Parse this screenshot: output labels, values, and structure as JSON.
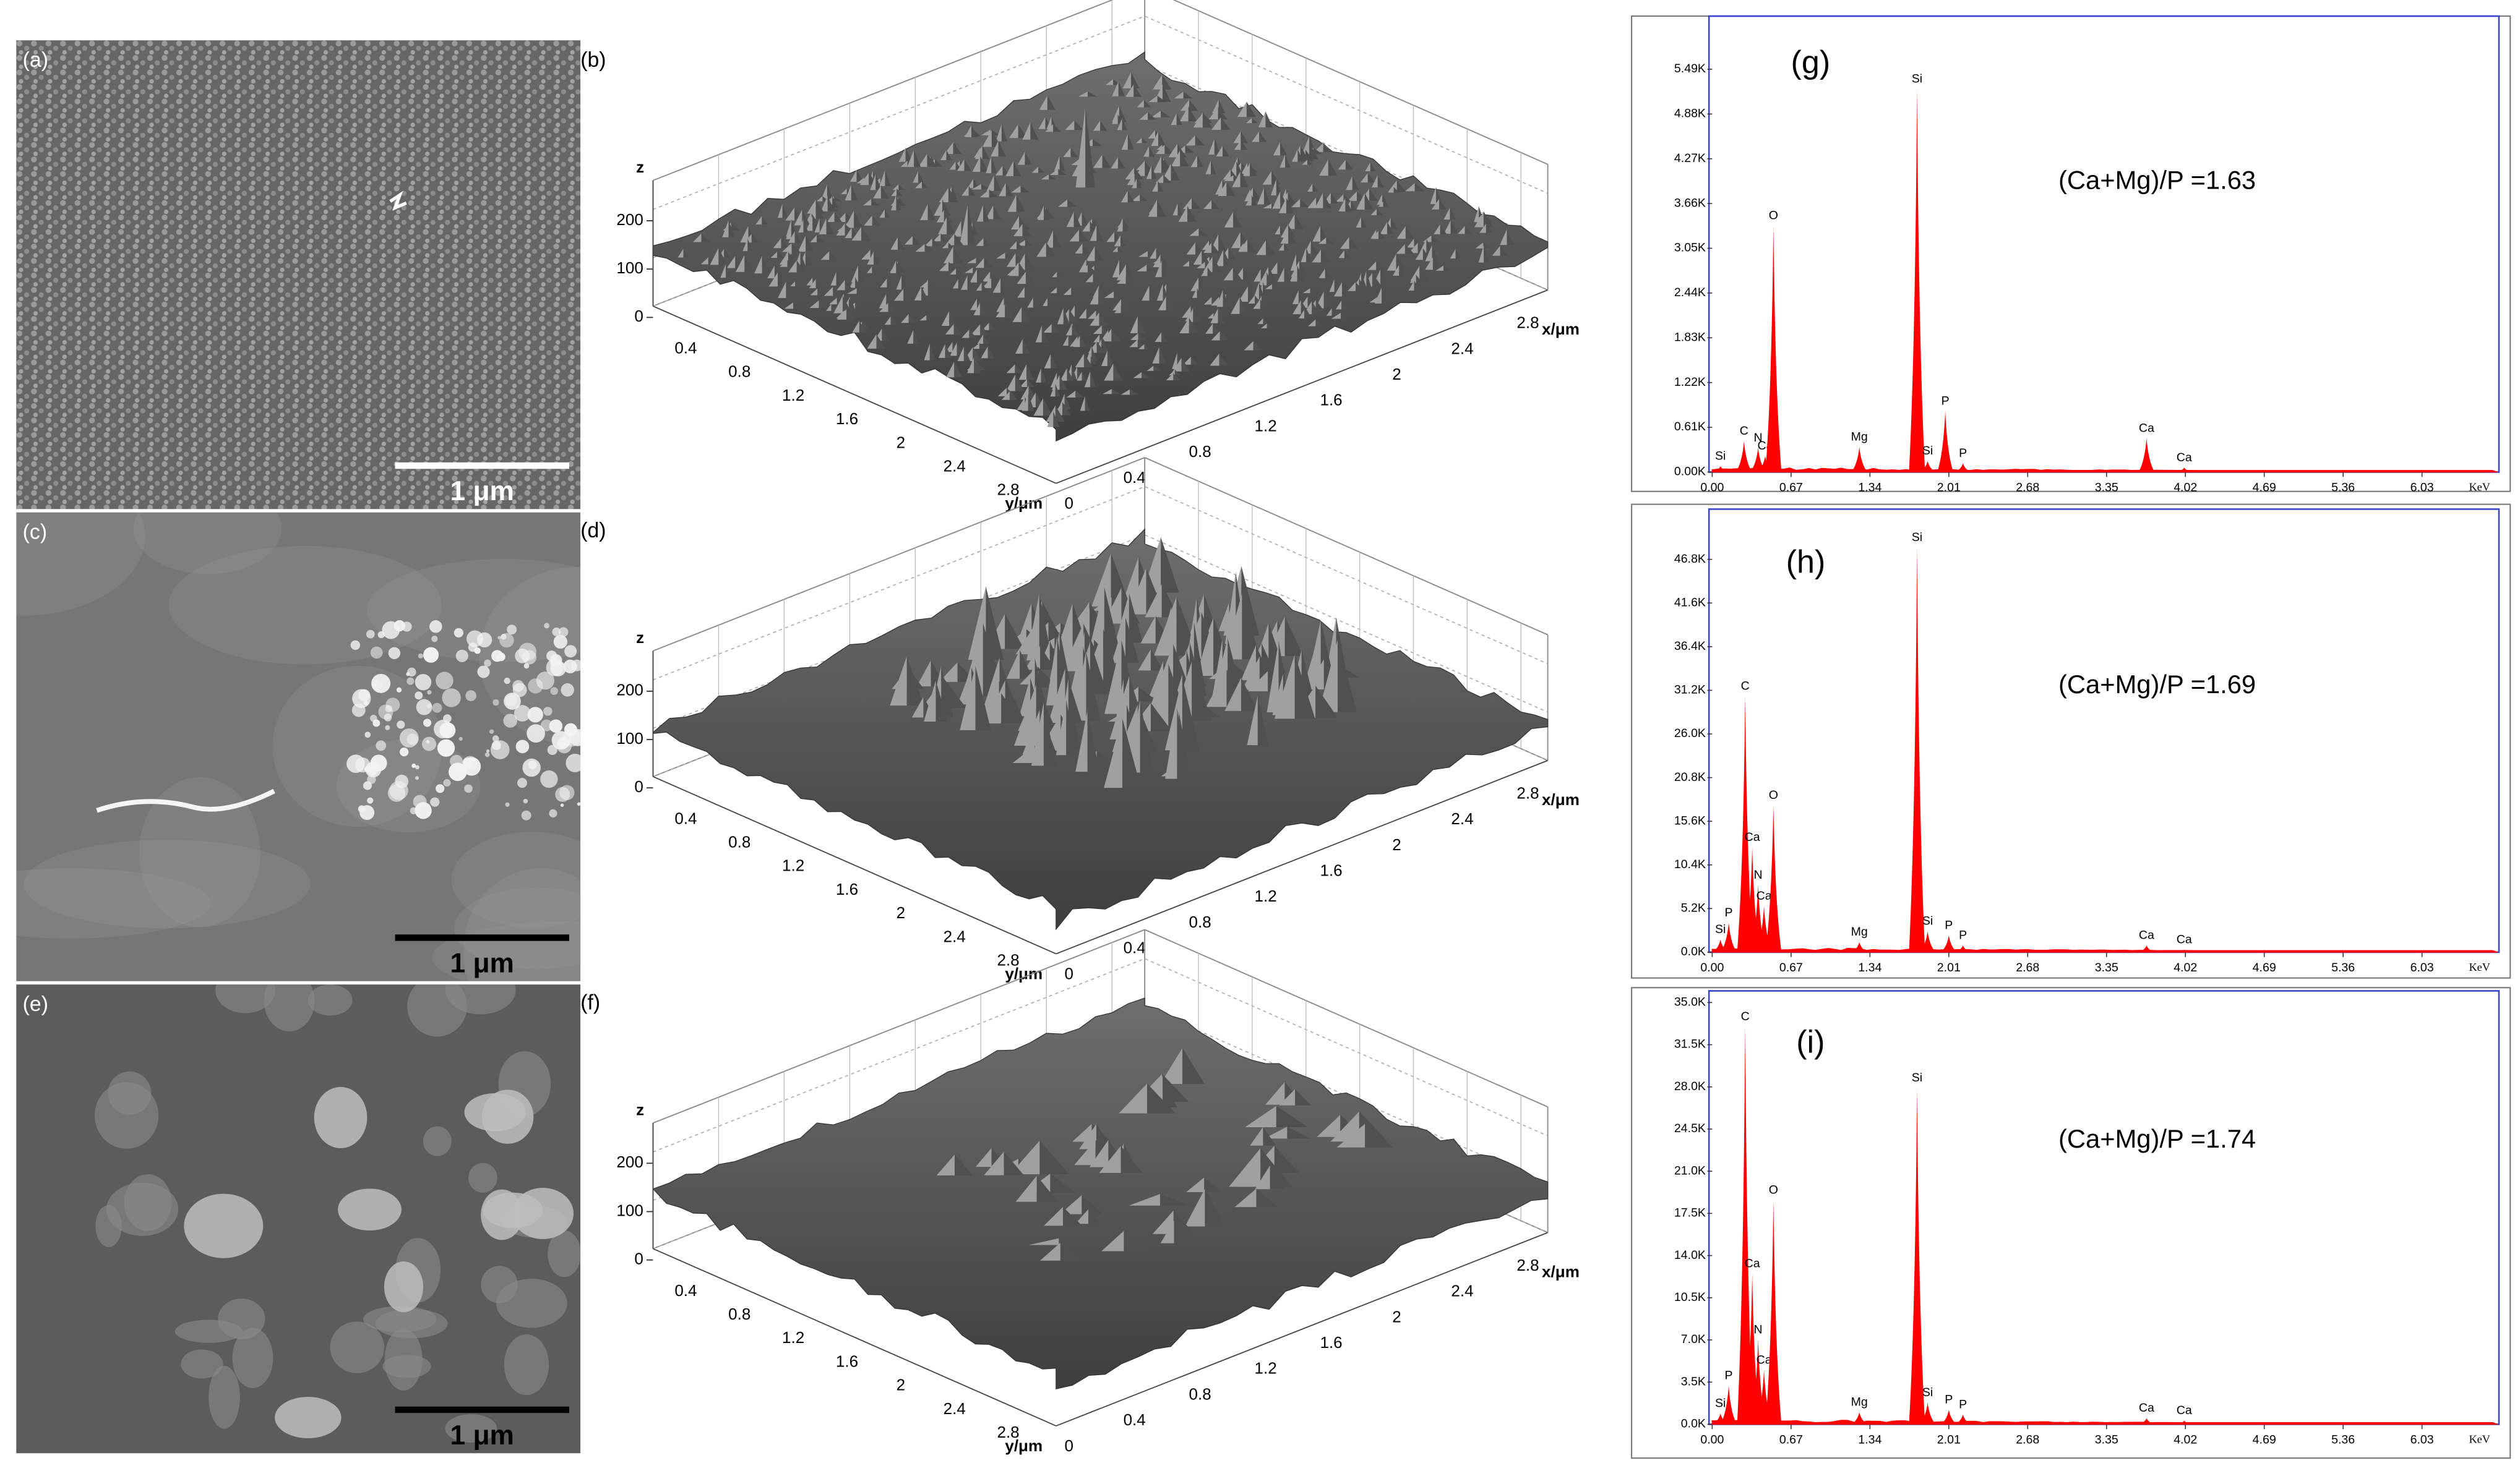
{
  "panels_sem": [
    {
      "label": "(a)",
      "scale_bar": "1 μm"
    },
    {
      "label": "(c)",
      "scale_bar": "1 μm"
    },
    {
      "label": "(e)",
      "scale_bar": "1 μm"
    }
  ],
  "panels_afm": [
    {
      "label": "(b)",
      "z_label": "z",
      "z_ticks": [
        0,
        100,
        200
      ],
      "y_label": "y/μm",
      "y_ticks": [
        0.4,
        0.8,
        1.2,
        1.6,
        2,
        2.4,
        2.8
      ],
      "x_label": "x/μm",
      "x_ticks": [
        0,
        0.4,
        0.8,
        1.2,
        1.6,
        2,
        2.4,
        2.8
      ]
    },
    {
      "label": "(d)",
      "z_label": "z",
      "z_ticks": [
        0,
        100,
        200
      ],
      "y_label": "y/μm",
      "y_ticks": [
        0.4,
        0.8,
        1.2,
        1.6,
        2,
        2.4,
        2.8
      ],
      "x_label": "x/μm",
      "x_ticks": [
        0,
        0.4,
        0.8,
        1.2,
        1.6,
        2,
        2.4,
        2.8
      ]
    },
    {
      "label": "(f)",
      "z_label": "z",
      "z_ticks": [
        0,
        100,
        200
      ],
      "y_label": "y/μm",
      "y_ticks": [
        0.4,
        0.8,
        1.2,
        1.6,
        2,
        2.4,
        2.8
      ],
      "x_label": "x/μm",
      "x_ticks": [
        0,
        0.4,
        0.8,
        1.2,
        1.6,
        2,
        2.4,
        2.8
      ]
    }
  ],
  "chart_data": [
    {
      "type": "spectrum",
      "label": "(g)",
      "annotation": "(Ca+Mg)/P =1.63",
      "x_unit": "KeV",
      "color": "#ff0000",
      "xlim": [
        0,
        6.67
      ],
      "xticks": [
        {
          "value": 0,
          "label": "0.00"
        },
        {
          "value": 0.67,
          "label": "0.67"
        },
        {
          "value": 1.34,
          "label": "1.34"
        },
        {
          "value": 2.01,
          "label": "2.01"
        },
        {
          "value": 2.68,
          "label": "2.68"
        },
        {
          "value": 3.35,
          "label": "3.35"
        },
        {
          "value": 4.02,
          "label": "4.02"
        },
        {
          "value": 4.69,
          "label": "4.69"
        },
        {
          "value": 5.36,
          "label": "5.36"
        },
        {
          "value": 6.03,
          "label": "6.03"
        }
      ],
      "ylim": [
        0,
        6170
      ],
      "yticks": [
        {
          "value": 0,
          "label": "0.00K"
        },
        {
          "value": 610,
          "label": "0.61K"
        },
        {
          "value": 1220,
          "label": "1.22K"
        },
        {
          "value": 1830,
          "label": "1.83K"
        },
        {
          "value": 2440,
          "label": "2.44K"
        },
        {
          "value": 3050,
          "label": "3.05K"
        },
        {
          "value": 3660,
          "label": "3.66K"
        },
        {
          "value": 4270,
          "label": "4.27K"
        },
        {
          "value": 4880,
          "label": "4.88K"
        },
        {
          "value": 5490,
          "label": "5.49K"
        }
      ],
      "peaks": {
        "labels": [
          "Si",
          "C",
          "N",
          "Ca",
          "O",
          "Mg",
          "Si",
          "Si",
          "P",
          "P",
          "Ca",
          "Ca"
        ],
        "x": [
          0.07,
          0.27,
          0.39,
          0.45,
          0.52,
          1.25,
          1.74,
          1.83,
          1.98,
          2.13,
          3.69,
          4.01
        ],
        "values": [
          80,
          420,
          330,
          220,
          3360,
          340,
          5220,
          150,
          830,
          120,
          460,
          60
        ]
      }
    },
    {
      "type": "spectrum",
      "label": "(h)",
      "annotation": "(Ca+Mg)/P =1.69",
      "x_unit": "KeV",
      "color": "#ff0000",
      "xlim": [
        0,
        6.67
      ],
      "xticks": [
        {
          "value": 0,
          "label": "0.00"
        },
        {
          "value": 0.67,
          "label": "0.67"
        },
        {
          "value": 1.34,
          "label": "1.34"
        },
        {
          "value": 2.01,
          "label": "2.01"
        },
        {
          "value": 2.68,
          "label": "2.68"
        },
        {
          "value": 3.35,
          "label": "3.35"
        },
        {
          "value": 4.02,
          "label": "4.02"
        },
        {
          "value": 4.69,
          "label": "4.69"
        },
        {
          "value": 5.36,
          "label": "5.36"
        },
        {
          "value": 6.03,
          "label": "6.03"
        }
      ],
      "ylim": [
        0,
        52400
      ],
      "yticks": [
        {
          "value": 0,
          "label": "0.0K"
        },
        {
          "value": 5200,
          "label": "5.2K"
        },
        {
          "value": 10400,
          "label": "10.4K"
        },
        {
          "value": 15600,
          "label": "15.6K"
        },
        {
          "value": 20800,
          "label": "20.8K"
        },
        {
          "value": 26000,
          "label": "26.0K"
        },
        {
          "value": 31200,
          "label": "31.2K"
        },
        {
          "value": 36400,
          "label": "36.4K"
        },
        {
          "value": 41600,
          "label": "41.6K"
        },
        {
          "value": 46800,
          "label": "46.8K"
        }
      ],
      "peaks": {
        "labels": [
          "Si",
          "P",
          "C",
          "Ca",
          "N",
          "Ca",
          "O",
          "Mg",
          "Si",
          "Si",
          "P",
          "P",
          "Ca",
          "Ca"
        ],
        "x": [
          0.07,
          0.14,
          0.28,
          0.34,
          0.39,
          0.44,
          0.52,
          1.25,
          1.74,
          1.83,
          2.01,
          2.13,
          3.69,
          4.01
        ],
        "values": [
          1500,
          3500,
          30500,
          12500,
          8000,
          5500,
          17500,
          1200,
          48200,
          2500,
          2000,
          800,
          800,
          300
        ]
      }
    },
    {
      "type": "spectrum",
      "label": "(i)",
      "annotation": "(Ca+Mg)/P =1.74",
      "x_unit": "KeV",
      "color": "#ff0000",
      "xlim": [
        0,
        6.67
      ],
      "xticks": [
        {
          "value": 0,
          "label": "0.00"
        },
        {
          "value": 0.67,
          "label": "0.67"
        },
        {
          "value": 1.34,
          "label": "1.34"
        },
        {
          "value": 2.01,
          "label": "2.01"
        },
        {
          "value": 2.68,
          "label": "2.68"
        },
        {
          "value": 3.35,
          "label": "3.35"
        },
        {
          "value": 4.02,
          "label": "4.02"
        },
        {
          "value": 4.69,
          "label": "4.69"
        },
        {
          "value": 5.36,
          "label": "5.36"
        },
        {
          "value": 6.03,
          "label": "6.03"
        }
      ],
      "ylim": [
        0,
        35700
      ],
      "yticks": [
        {
          "value": 0,
          "label": "0.0K"
        },
        {
          "value": 3500,
          "label": "3.5K"
        },
        {
          "value": 7000,
          "label": "7.0K"
        },
        {
          "value": 10500,
          "label": "10.5K"
        },
        {
          "value": 14000,
          "label": "14.0K"
        },
        {
          "value": 17500,
          "label": "17.5K"
        },
        {
          "value": 21000,
          "label": "21.0K"
        },
        {
          "value": 24500,
          "label": "24.5K"
        },
        {
          "value": 28000,
          "label": "28.0K"
        },
        {
          "value": 31500,
          "label": "31.5K"
        },
        {
          "value": 35000,
          "label": "35.0K"
        }
      ],
      "peaks": {
        "labels": [
          "Si",
          "P",
          "C",
          "Ca",
          "N",
          "Ca",
          "O",
          "Mg",
          "Si",
          "Si",
          "P",
          "P",
          "Ca",
          "Ca"
        ],
        "x": [
          0.07,
          0.14,
          0.28,
          0.34,
          0.39,
          0.44,
          0.52,
          1.25,
          1.74,
          1.83,
          2.01,
          2.13,
          3.69,
          4.01
        ],
        "values": [
          900,
          3200,
          33000,
          12500,
          7000,
          4500,
          18600,
          1000,
          27900,
          1800,
          1200,
          800,
          500,
          300
        ]
      }
    }
  ]
}
